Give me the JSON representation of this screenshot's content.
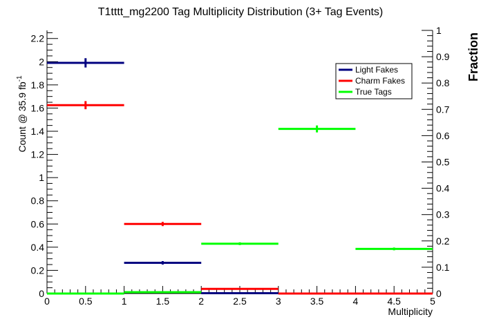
{
  "chart_data": {
    "type": "histogram",
    "title": "T1tttt_mg2200 Tag Multiplicity Distribution (3+ Tag Events)",
    "xlabel": "Multiplicity",
    "ylabel_left": "Count @ 35.9 fb",
    "ylabel_left_sup": "-1",
    "ylabel_right": "Fraction",
    "xlim": [
      0,
      5
    ],
    "ylim_left": [
      0,
      2.27
    ],
    "ylim_right": [
      0,
      1
    ],
    "x_ticks": [
      "0",
      "0.5",
      "1",
      "1.5",
      "2",
      "2.5",
      "3",
      "3.5",
      "4",
      "4.5",
      "5"
    ],
    "y_ticks_left": [
      "0",
      "0.2",
      "0.4",
      "0.6",
      "0.8",
      "1",
      "1.2",
      "1.4",
      "1.6",
      "1.8",
      "2",
      "2.2"
    ],
    "y_ticks_right": [
      "0",
      "0.1",
      "0.2",
      "0.3",
      "0.4",
      "0.5",
      "0.6",
      "0.7",
      "0.8",
      "0.9",
      "1"
    ],
    "bin_edges": [
      0,
      1,
      2,
      3,
      4,
      5
    ],
    "legend_position": "top-right",
    "series": [
      {
        "name": "Light Fakes",
        "color": "#000080",
        "values": [
          1.99,
          0.265,
          0.003,
          0.0,
          0.0
        ],
        "errors": [
          0.04,
          0.015,
          0.002,
          0.0,
          0.0
        ]
      },
      {
        "name": "Charm Fakes",
        "color": "#ff0000",
        "values": [
          1.625,
          0.6,
          0.04,
          0.0,
          0.0
        ],
        "errors": [
          0.035,
          0.018,
          0.004,
          0.0,
          0.0
        ]
      },
      {
        "name": "True Tags",
        "color": "#00ff00",
        "values": [
          0.0,
          0.012,
          0.43,
          1.42,
          0.385
        ],
        "errors": [
          0.0,
          0.003,
          0.012,
          0.03,
          0.012
        ]
      }
    ]
  }
}
